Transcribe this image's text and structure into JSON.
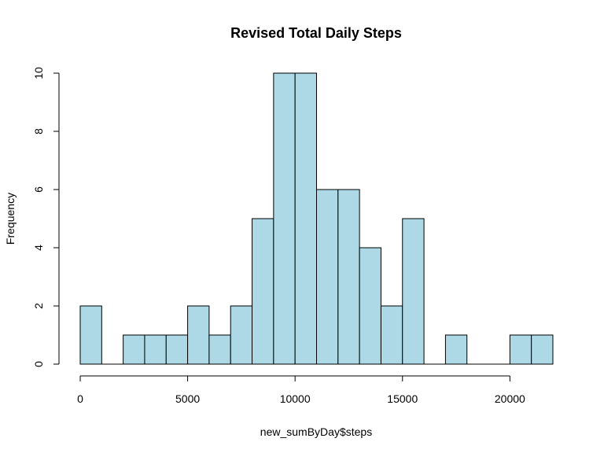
{
  "chart_data": {
    "type": "bar",
    "title": "Revised Total Daily Steps",
    "xlabel": "new_sumByDay$steps",
    "ylabel": "Frequency",
    "bin_width": 1000,
    "bin_starts": [
      0,
      1000,
      2000,
      3000,
      4000,
      5000,
      6000,
      7000,
      8000,
      9000,
      10000,
      11000,
      12000,
      13000,
      14000,
      15000,
      16000,
      17000,
      18000,
      19000,
      20000,
      21000
    ],
    "values": [
      2,
      0,
      1,
      1,
      1,
      2,
      1,
      2,
      5,
      10,
      10,
      6,
      6,
      4,
      2,
      5,
      0,
      1,
      0,
      0,
      1,
      1
    ],
    "xlim": [
      0,
      22000
    ],
    "ylim": [
      0,
      10
    ],
    "x_ticks": [
      0,
      5000,
      10000,
      15000,
      20000
    ],
    "x_tick_labels": [
      "0",
      "5000",
      "10000",
      "15000",
      "20000"
    ],
    "y_ticks": [
      0,
      2,
      4,
      6,
      8,
      10
    ],
    "y_tick_labels": [
      "0",
      "2",
      "4",
      "6",
      "8",
      "10"
    ],
    "bar_color": "#add8e6",
    "grid": false,
    "legend": "none"
  }
}
